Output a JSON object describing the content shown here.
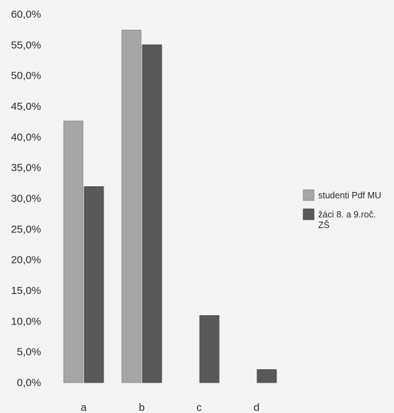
{
  "chart_data": {
    "type": "bar",
    "categories": [
      "a",
      "b",
      "c",
      "d"
    ],
    "series": [
      {
        "name": "studenti Pdf MU",
        "values": [
          42.6,
          57.4,
          0,
          0
        ]
      },
      {
        "name": "žáci 8. a 9.roč. ZŠ",
        "values": [
          31.9,
          55.0,
          10.9,
          2.1
        ]
      }
    ],
    "y_ticks": [
      "0,0%",
      "5,0%",
      "10,0%",
      "15,0%",
      "20,0%",
      "25,0%",
      "30,0%",
      "35,0%",
      "40,0%",
      "45,0%",
      "50,0%",
      "55,0%",
      "60,0%"
    ],
    "ylim": [
      0,
      60
    ],
    "grid": false,
    "legend_position": "right",
    "legend_lines": [
      [
        "studenti Pdf MU"
      ],
      [
        "žáci 8. a 9.roč.",
        "ZŠ"
      ]
    ],
    "colors": {
      "series1": "#a6a6a6",
      "series2": "#595959",
      "background": "#f4f4f4",
      "text": "#2a2a2a"
    }
  }
}
